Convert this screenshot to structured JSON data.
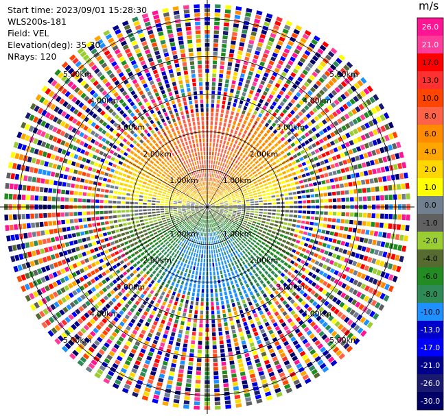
{
  "header": {
    "start_time": "Start time: 2023/09/01 15:28:30",
    "instrument": "WLS200s-181",
    "field": "Field: VEL",
    "elevation": "Elevation(deg): 35.30",
    "nrays": "NRays: 120"
  },
  "chart_data": {
    "type": "ppi",
    "field": "VEL",
    "units": "m/s",
    "nrays": 120,
    "elevation_deg": 35.3,
    "range_rings_km": [
      {
        "value": 1.0,
        "label": "1.00km"
      },
      {
        "value": 2.0,
        "label": "2.00km"
      },
      {
        "value": 3.0,
        "label": "3.00km"
      },
      {
        "value": 4.0,
        "label": "4.00km"
      },
      {
        "value": 5.0,
        "label": "5.00km"
      }
    ],
    "max_range_km": 5.5,
    "colorbar": {
      "title": "m/s",
      "range": [
        -30,
        30
      ],
      "ticks": [
        "26.0",
        "21.0",
        "17.0",
        "13.0",
        "10.0",
        "8.0",
        "6.0",
        "4.0",
        "2.0",
        "1.0",
        "0.0",
        "-1.0",
        "-2.0",
        "-4.0",
        "-6.0",
        "-8.0",
        "-10.0",
        "-13.0",
        "-17.0",
        "-21.0",
        "-26.0",
        "-30.0"
      ],
      "colors": [
        "#ff1493",
        "#ff3c9a",
        "#ff0000",
        "#ff3030",
        "#ff4500",
        "#ff6347",
        "#ff8c00",
        "#ffa500",
        "#ffd700",
        "#ffff00",
        "#708090",
        "#606060",
        "#9acd32",
        "#556b2f",
        "#228b22",
        "#2e8b57",
        "#1e90ff",
        "#0000cd",
        "#0000ff",
        "#00008b",
        "#191970",
        "#000066"
      ]
    },
    "radial_profile": {
      "clear_air_max_range_km": 2.6,
      "northward_velocity": "positive (red/orange)",
      "southward_velocity": "negative (blue)",
      "beyond_clear_air": "noise"
    }
  }
}
